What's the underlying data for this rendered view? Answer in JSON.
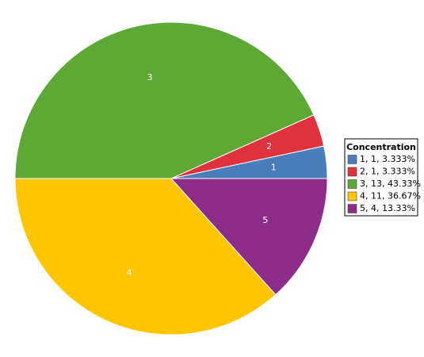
{
  "chart_data": {
    "type": "pie",
    "categories": [
      "1",
      "2",
      "3",
      "4",
      "5"
    ],
    "values": [
      1,
      1,
      13,
      11,
      4
    ],
    "colors": [
      "#4a7ebb",
      "#e0323c",
      "#5ea836",
      "#ffc600",
      "#8e2c89"
    ],
    "legend_title": "Concentration",
    "legend_labels": [
      "1, 1, 3.333%",
      "2, 1, 3.333%",
      "3, 13, 43.33%",
      "4, 11, 36.67%",
      "5, 4, 13.33%"
    ],
    "legend": "right"
  }
}
